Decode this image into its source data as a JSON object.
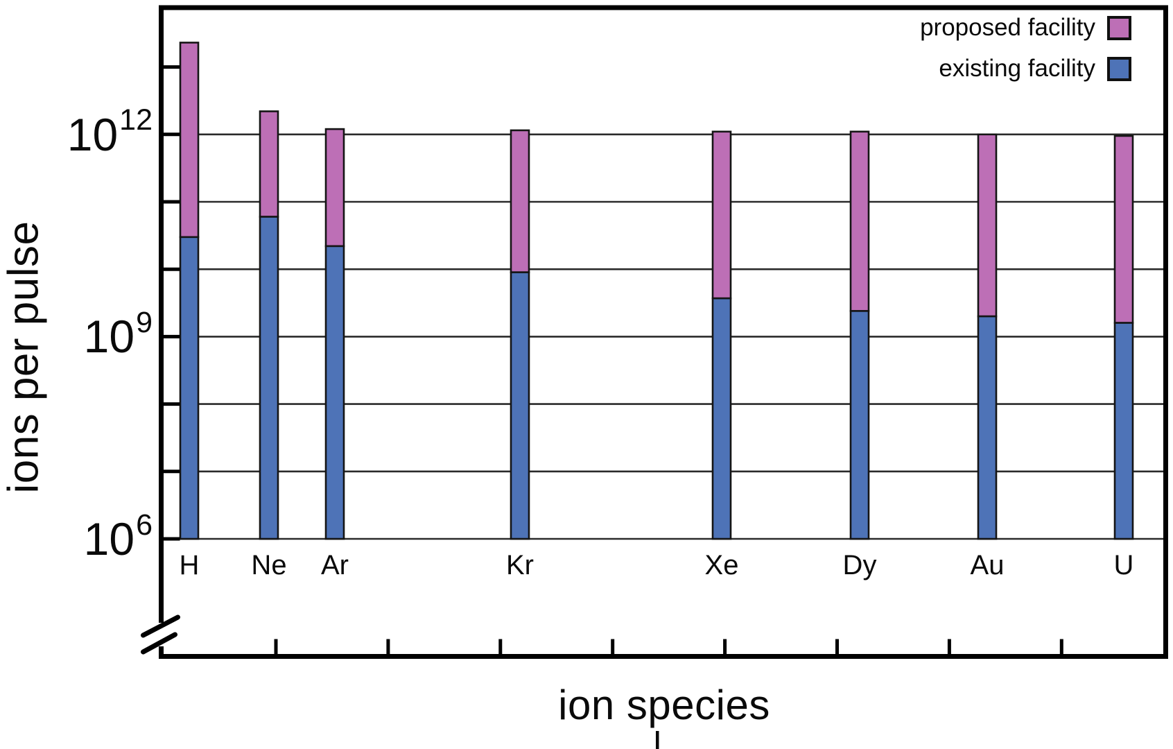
{
  "figure": {
    "y_tick_labels": [
      {
        "base": "10",
        "exp": "12",
        "value": 1000000000000.0
      },
      {
        "base": "10",
        "exp": "9",
        "value": 1000000000.0
      },
      {
        "base": "10",
        "exp": "6",
        "value": 1000000.0
      }
    ],
    "legend": [
      {
        "label": "proposed facility",
        "color": "#BD6FB6"
      },
      {
        "label": "existing facility",
        "color": "#4E73B7"
      }
    ]
  },
  "chart_data": {
    "type": "bar",
    "stacked": true,
    "y_scale": "log10",
    "grid": true,
    "legend_position": "top-right",
    "xlabel": "ion species",
    "ylabel": "ions per pulse",
    "categories": [
      "H",
      "Ne",
      "Ar",
      "Kr",
      "Xe",
      "Dy",
      "Au",
      "U"
    ],
    "series": [
      {
        "name": "existing facility",
        "color": "#4E73B7",
        "values": [
          30000000000.0,
          60000000000.0,
          22000000000.0,
          9000000000.0,
          3700000000.0,
          2400000000.0,
          2000000000.0,
          1600000000.0
        ]
      },
      {
        "name": "proposed facility",
        "color": "#BD6FB6",
        "stack_top_values": [
          23000000000000.0,
          2200000000000.0,
          1200000000000.0,
          1150000000000.0,
          1100000000000.0,
          1100000000000.0,
          1000000000000.0,
          950000000000.0
        ],
        "note": "pink segment spans from existing-facility value up to stack_top_value"
      }
    ],
    "gridlines_at": [
      1000000000000.0,
      100000000000.0,
      10000000000.0,
      1000000000.0,
      100000000.0,
      10000000.0,
      1000000.0
    ],
    "y_ticks_labeled": [
      1000000000000.0,
      1000000000.0,
      1000000.0
    ],
    "ylim_displayed": [
      1000000.0,
      32000000000000.0
    ],
    "axis_break_below": 1000000.0
  }
}
